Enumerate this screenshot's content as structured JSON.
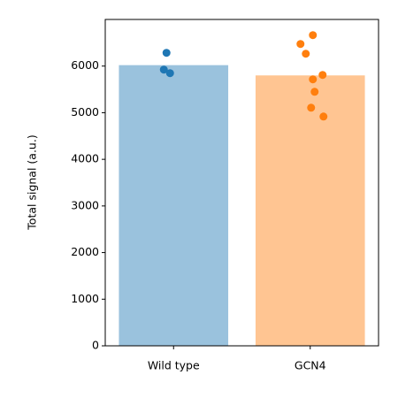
{
  "chart_data": {
    "type": "bar",
    "ylabel": "Total signal (a.u.)",
    "categories": [
      "Wild type",
      "GCN4"
    ],
    "values": [
      6020,
      5800
    ],
    "colors": [
      "#1f77b4",
      "#ff7f0e"
    ],
    "bar_alpha": 0.45,
    "points": [
      [
        6285,
        5924,
        5848
      ],
      [
        6664,
        6474,
        6265,
        5810,
        5715,
        5449,
        5107,
        4917
      ]
    ],
    "ylim": [
      0,
      7000
    ],
    "yticks": [
      0,
      1000,
      2000,
      3000,
      4000,
      5000,
      6000
    ]
  }
}
